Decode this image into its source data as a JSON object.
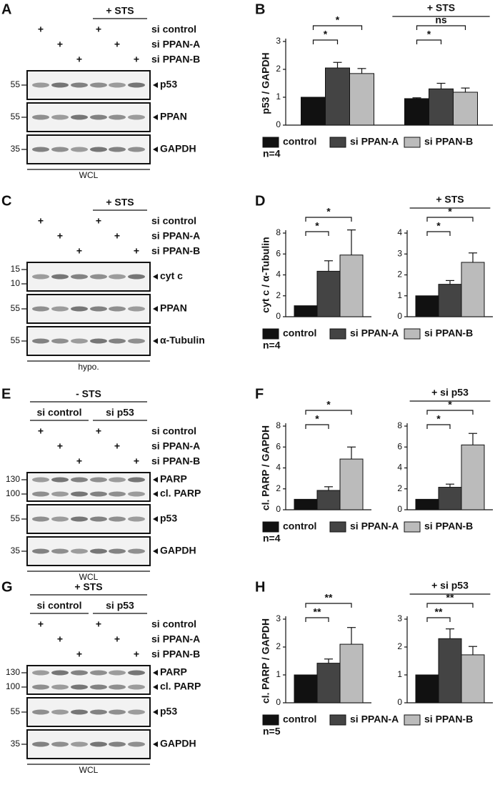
{
  "figure": {
    "rows": [
      {
        "blot": {
          "letter": "A",
          "groups": [
            null,
            "+ STS"
          ],
          "treatments": [
            {
              "name": "si control",
              "lanes": [
                "+",
                null,
                null,
                "+",
                null,
                null
              ]
            },
            {
              "name": "si PPAN-A",
              "lanes": [
                null,
                "+",
                null,
                null,
                "+",
                null
              ]
            },
            {
              "name": "si PPAN-B",
              "lanes": [
                null,
                null,
                "+",
                null,
                null,
                "+"
              ]
            }
          ],
          "panels": [
            {
              "labels": [
                "p53"
              ],
              "markers": [
                55
              ]
            },
            {
              "labels": [
                "PPAN"
              ],
              "markers": [
                55
              ]
            },
            {
              "labels": [
                "GAPDH"
              ],
              "markers": [
                35
              ]
            }
          ],
          "footer": "WCL"
        },
        "plot": {
          "letter": "B",
          "ylabel": "p53 / GAPDH",
          "n": "n=4",
          "legend": [
            {
              "name": "control",
              "color": "#111111"
            },
            {
              "name": "si PPAN-A",
              "color": "#444444"
            },
            {
              "name": "si PPAN-B",
              "color": "#bbbbbb"
            }
          ],
          "charts": [
            {
              "type": "bar",
              "categories": [
                null,
                "+ STS"
              ],
              "ylim": [
                0,
                3
              ],
              "yticks": [
                0,
                1,
                2,
                3
              ],
              "values": [
                [
                  1,
                  2.05,
                  1.85
                ],
                [
                  0.95,
                  1.3,
                  1.18
                ]
              ],
              "errors": [
                [
                  null,
                  0.2,
                  0.18
                ],
                [
                  0.03,
                  0.2,
                  0.15
                ]
              ],
              "significance": [
                [
                  "*",
                  "*"
                ],
                [
                  "*",
                  "ns"
                ]
              ]
            }
          ]
        }
      },
      {
        "blot": {
          "letter": "C",
          "groups": [
            null,
            "+ STS"
          ],
          "treatments": [
            {
              "name": "si control",
              "lanes": [
                "+",
                null,
                null,
                "+",
                null,
                null
              ]
            },
            {
              "name": "si PPAN-A",
              "lanes": [
                null,
                "+",
                null,
                null,
                "+",
                null
              ]
            },
            {
              "name": "si PPAN-B",
              "lanes": [
                null,
                null,
                "+",
                null,
                null,
                "+"
              ]
            }
          ],
          "panels": [
            {
              "labels": [
                "cyt c"
              ],
              "markers": [
                15,
                10
              ]
            },
            {
              "labels": [
                "PPAN"
              ],
              "markers": [
                55
              ]
            },
            {
              "labels": [
                "α-Tubulin"
              ],
              "markers": [
                55
              ]
            }
          ],
          "footer": "hypo."
        },
        "plot": {
          "letter": "D",
          "ylabel": "cyt c / α-Tubulin",
          "n": "n=4",
          "legend": [
            {
              "name": "control",
              "color": "#111111"
            },
            {
              "name": "si PPAN-A",
              "color": "#444444"
            },
            {
              "name": "si PPAN-B",
              "color": "#bbbbbb"
            }
          ],
          "charts": [
            {
              "type": "bar",
              "categories": [
                null
              ],
              "ylim": [
                0,
                8
              ],
              "yticks": [
                0,
                2,
                4,
                6,
                8
              ],
              "values": [
                [
                  1.05,
                  4.35,
                  5.9
                ]
              ],
              "errors": [
                [
                  null,
                  1.0,
                  2.4
                ]
              ],
              "significance": [
                [
                  "*",
                  "*"
                ]
              ]
            },
            {
              "type": "bar",
              "categories": [
                "+ STS"
              ],
              "ylim": [
                0,
                4
              ],
              "yticks": [
                0,
                1,
                2,
                3,
                4
              ],
              "values": [
                [
                  1,
                  1.55,
                  2.6
                ]
              ],
              "errors": [
                [
                  null,
                  0.18,
                  0.45
                ]
              ],
              "significance": [
                [
                  "*",
                  "*"
                ]
              ]
            }
          ]
        }
      },
      {
        "blot": {
          "letter": "E",
          "title": "- STS",
          "groups": [
            "si control",
            "si p53"
          ],
          "treatments": [
            {
              "name": "si control",
              "lanes": [
                "+",
                null,
                null,
                "+",
                null,
                null
              ]
            },
            {
              "name": "si PPAN-A",
              "lanes": [
                null,
                "+",
                null,
                null,
                "+",
                null
              ]
            },
            {
              "name": "si PPAN-B",
              "lanes": [
                null,
                null,
                "+",
                null,
                null,
                "+"
              ]
            }
          ],
          "panels": [
            {
              "labels": [
                "PARP",
                "cl. PARP"
              ],
              "markers": [
                130,
                100
              ]
            },
            {
              "labels": [
                "p53"
              ],
              "markers": [
                55
              ]
            },
            {
              "labels": [
                "GAPDH"
              ],
              "markers": [
                35
              ]
            }
          ],
          "footer": "WCL"
        },
        "plot": {
          "letter": "F",
          "ylabel": "cl. PARP / GAPDH",
          "n": "n=4",
          "legend": [
            {
              "name": "control",
              "color": "#111111"
            },
            {
              "name": "si PPAN-A",
              "color": "#444444"
            },
            {
              "name": "si PPAN-B",
              "color": "#bbbbbb"
            }
          ],
          "charts": [
            {
              "type": "bar",
              "categories": [
                null
              ],
              "ylim": [
                0,
                8
              ],
              "yticks": [
                0,
                2,
                4,
                6,
                8
              ],
              "values": [
                [
                  1,
                  1.85,
                  4.85
                ]
              ],
              "errors": [
                [
                  null,
                  0.35,
                  1.15
                ]
              ],
              "significance": [
                [
                  "*",
                  "*"
                ]
              ]
            },
            {
              "type": "bar",
              "categories": [
                "+ si p53"
              ],
              "ylim": [
                0,
                8
              ],
              "yticks": [
                0,
                2,
                4,
                6,
                8
              ],
              "values": [
                [
                  1,
                  2.15,
                  6.2
                ]
              ],
              "errors": [
                [
                  null,
                  0.3,
                  1.1
                ]
              ],
              "significance": [
                [
                  "*",
                  "*"
                ]
              ]
            }
          ]
        }
      },
      {
        "blot": {
          "letter": "G",
          "title": "+ STS",
          "groups": [
            "si control",
            "si p53"
          ],
          "treatments": [
            {
              "name": "si control",
              "lanes": [
                "+",
                null,
                null,
                "+",
                null,
                null
              ]
            },
            {
              "name": "si PPAN-A",
              "lanes": [
                null,
                "+",
                null,
                null,
                "+",
                null
              ]
            },
            {
              "name": "si PPAN-B",
              "lanes": [
                null,
                null,
                "+",
                null,
                null,
                "+"
              ]
            }
          ],
          "panels": [
            {
              "labels": [
                "PARP",
                "cl. PARP"
              ],
              "markers": [
                130,
                100
              ]
            },
            {
              "labels": [
                "p53"
              ],
              "markers": [
                55
              ]
            },
            {
              "labels": [
                "GAPDH"
              ],
              "markers": [
                35
              ]
            }
          ],
          "footer": "WCL"
        },
        "plot": {
          "letter": "H",
          "ylabel": "cl. PARP / GAPDH",
          "n": "n=5",
          "legend": [
            {
              "name": "control",
              "color": "#111111"
            },
            {
              "name": "si PPAN-A",
              "color": "#444444"
            },
            {
              "name": "si PPAN-B",
              "color": "#bbbbbb"
            }
          ],
          "charts": [
            {
              "type": "bar",
              "categories": [
                null
              ],
              "ylim": [
                0,
                3
              ],
              "yticks": [
                0,
                1,
                2,
                3
              ],
              "values": [
                [
                  1,
                  1.42,
                  2.1
                ]
              ],
              "errors": [
                [
                  null,
                  0.15,
                  0.6
                ]
              ],
              "significance": [
                [
                  "**",
                  "**"
                ]
              ]
            },
            {
              "type": "bar",
              "categories": [
                "+ si p53"
              ],
              "ylim": [
                0,
                3
              ],
              "yticks": [
                0,
                1,
                2,
                3
              ],
              "values": [
                [
                  1,
                  2.3,
                  1.72
                ]
              ],
              "errors": [
                [
                  null,
                  0.35,
                  0.3
                ]
              ],
              "significance": [
                [
                  "**",
                  "**"
                ]
              ]
            }
          ]
        }
      }
    ]
  }
}
